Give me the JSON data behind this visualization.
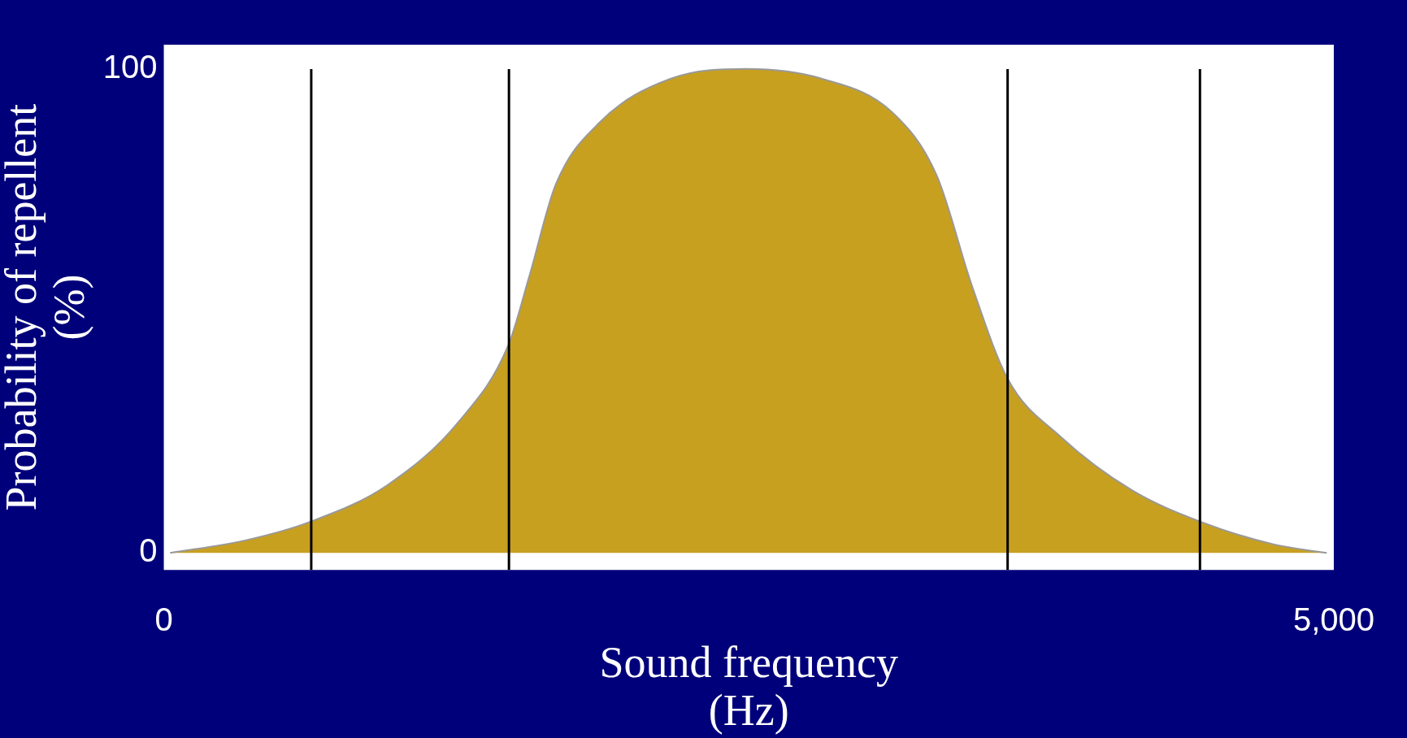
{
  "chart_data": {
    "type": "area",
    "xlabel": "Sound frequency\n(Hz)",
    "ylabel": "Probability of repellent\n(%)",
    "x": [
      27,
      348,
      629,
      955,
      1258,
      1473,
      1561,
      1674,
      1864,
      2167,
      2489,
      2811,
      3114,
      3303,
      3455,
      3606,
      3833,
      4136,
      4428,
      4742,
      4970
    ],
    "series": [
      {
        "color": "#c8a020",
        "values": [
          0,
          2.6,
          6.5,
          14,
          27,
          43,
          57,
          76,
          89,
          98,
          100,
          98,
          91,
          78,
          55,
          36,
          24,
          13,
          6.5,
          1.8,
          0
        ]
      }
    ],
    "xlim": [
      0,
      5000
    ],
    "xticks": [
      0,
      {
        "value": 5000,
        "label": "5,000"
      }
    ],
    "ylim": [
      -3.5,
      105
    ],
    "yticks": [
      0,
      100
    ],
    "ref_lines": [
      {
        "axis": "x",
        "value": 630,
        "color": "#000000"
      },
      {
        "axis": "x",
        "value": 1475,
        "color": "#000000"
      },
      {
        "axis": "x",
        "value": 3606,
        "color": "#000000"
      },
      {
        "axis": "x",
        "value": 4428,
        "color": "#000000"
      }
    ],
    "grid": false,
    "legend": false,
    "marker": "none",
    "line_style": "solid"
  }
}
